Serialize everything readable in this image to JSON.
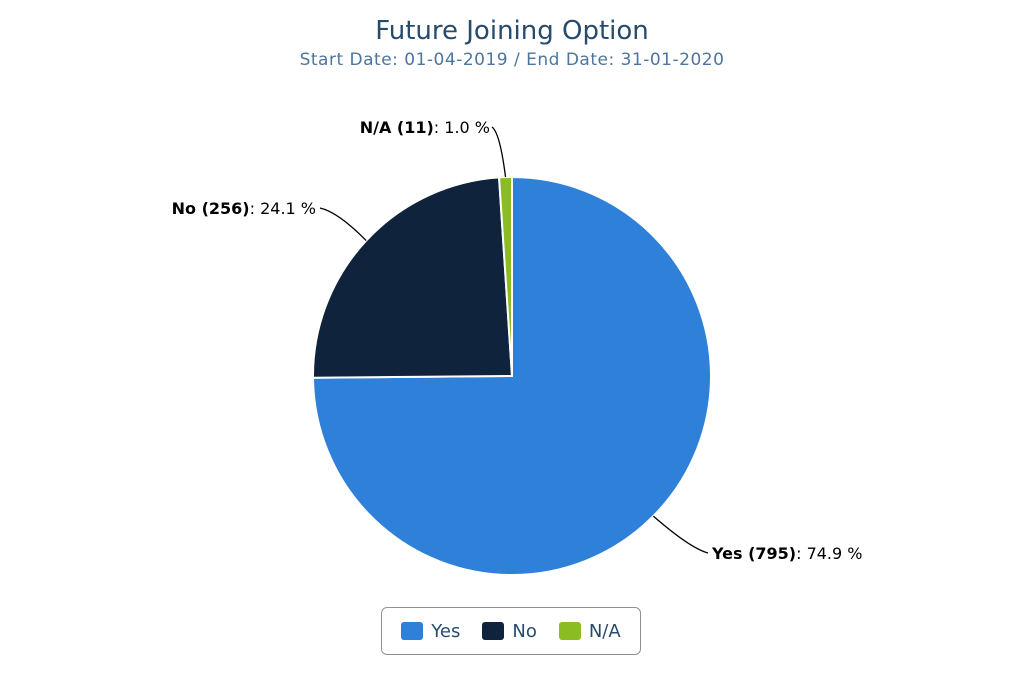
{
  "chart_data": {
    "type": "pie",
    "title": "Future Joining Option",
    "subtitle": "Start Date: 01-04-2019 / End Date: 31-01-2020",
    "slices": [
      {
        "name": "Yes",
        "count": 795,
        "percent": 74.9,
        "count_label": "Yes (795)",
        "pct_label": ": 74.9 %",
        "color": "#2f80d9"
      },
      {
        "name": "No",
        "count": 256,
        "percent": 24.1,
        "count_label": "No (256)",
        "pct_label": ": 24.1 %",
        "color": "#0f233c"
      },
      {
        "name": "N/A",
        "count": 11,
        "percent": 1.0,
        "count_label": "N/A (11)",
        "pct_label": ": 1.0 %",
        "color": "#8bbc21"
      }
    ],
    "legend": {
      "placement": "bottom-center",
      "items": [
        "Yes",
        "No",
        "N/A"
      ]
    }
  }
}
